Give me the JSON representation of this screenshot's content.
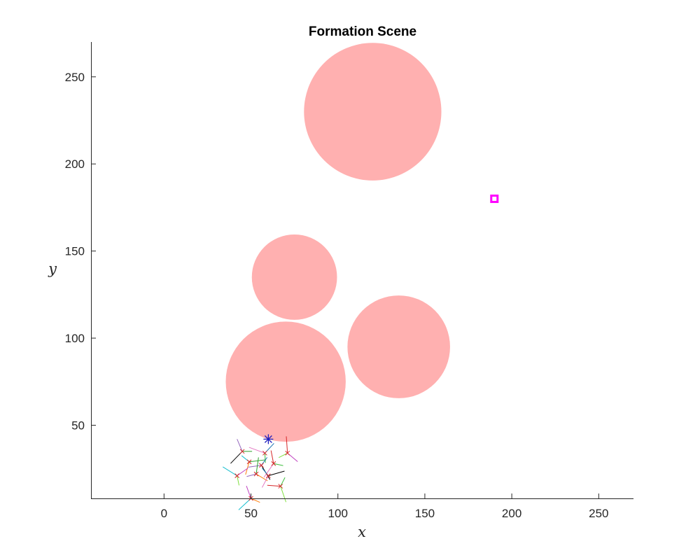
{
  "chart_data": {
    "type": "scatter",
    "title": "Formation Scene",
    "xlabel": "x",
    "ylabel": "y",
    "xlim": [
      -42,
      270
    ],
    "ylim": [
      8,
      270
    ],
    "xticks": [
      0,
      50,
      100,
      150,
      200,
      250
    ],
    "yticks": [
      50,
      100,
      150,
      200,
      250
    ],
    "xtick_labels": [
      "0",
      "50",
      "100",
      "150",
      "200",
      "250"
    ],
    "ytick_labels": [
      "50",
      "100",
      "150",
      "200",
      "250"
    ],
    "grid": false,
    "obstacles": [
      {
        "cx": 120,
        "cy": 230,
        "r": 39.5
      },
      {
        "cx": 75,
        "cy": 135,
        "r": 24.5
      },
      {
        "cx": 135,
        "cy": 95,
        "r": 29.5
      },
      {
        "cx": 70,
        "cy": 75,
        "r": 34.5
      }
    ],
    "obstacle_color": "#ffb0b0",
    "goal": {
      "x": 190,
      "y": 180,
      "color": "#ff00ff"
    },
    "leader": {
      "x": 60,
      "y": 42,
      "color": "#1f1fbf"
    },
    "agents": [
      {
        "x": 45,
        "y": 35
      },
      {
        "x": 58,
        "y": 34
      },
      {
        "x": 71,
        "y": 34
      },
      {
        "x": 49,
        "y": 29
      },
      {
        "x": 56,
        "y": 27
      },
      {
        "x": 63,
        "y": 28
      },
      {
        "x": 42,
        "y": 21
      },
      {
        "x": 53,
        "y": 22
      },
      {
        "x": 60,
        "y": 21
      },
      {
        "x": 67,
        "y": 15
      },
      {
        "x": 50,
        "y": 8
      }
    ],
    "velocity_colors": [
      "#2ca02c",
      "#1f77b4",
      "#d62728",
      "#17becf",
      "#9467bd",
      "#e377c2",
      "#7fdf3f",
      "#ff7f0e",
      "#000000",
      "#3fbf3f",
      "#bf3fbf"
    ]
  }
}
